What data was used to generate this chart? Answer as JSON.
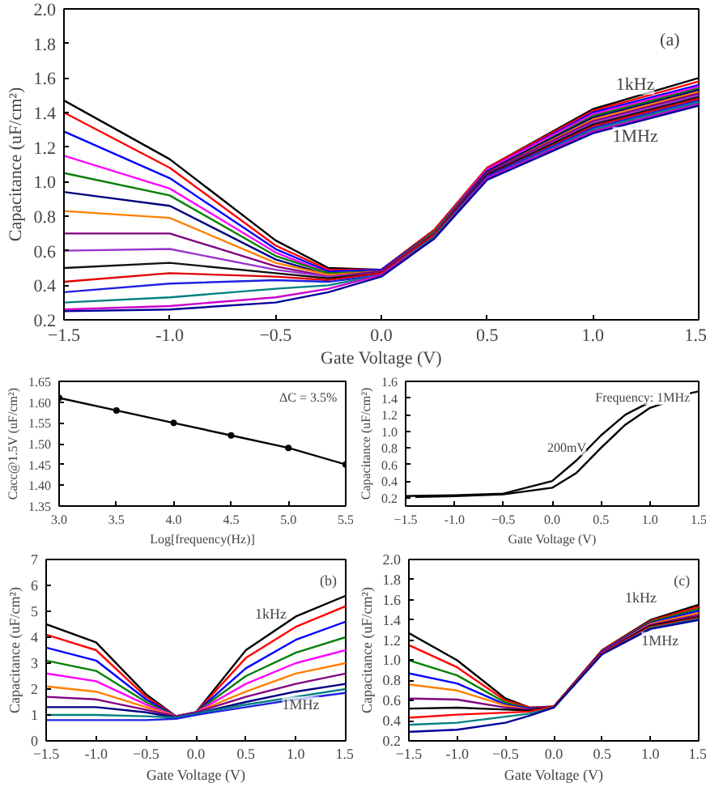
{
  "chart_data": [
    {
      "type": "line",
      "xlabel": "Gate Voltage (V)",
      "ylabel": "Capacitance (uF/cm²)",
      "grid": false,
      "xlim": [
        -1.5,
        1.5
      ],
      "xticks": [
        -1.5,
        {
          "value": -1,
          "label": "-1.0"
        },
        -0.5,
        {
          "value": 0,
          "label": "0.0"
        },
        0.5,
        {
          "value": 1,
          "label": "1.0"
        },
        1.5
      ],
      "ylim": [
        0.2,
        2.0
      ],
      "yticks": [
        0.2,
        0.4,
        0.6,
        0.8,
        {
          "value": 1,
          "label": "1.0"
        },
        1.2,
        1.4,
        1.6,
        1.8,
        {
          "value": 2,
          "label": "2.0"
        }
      ],
      "x": [
        -1.5,
        -1.0,
        -0.5,
        -0.25,
        0,
        0.25,
        0.5,
        1.0,
        1.5
      ],
      "annotations": [
        "(a)",
        {
          "text": "1kHz",
          "x": 1.2,
          "y": 1.56
        },
        {
          "text": "1MHz",
          "x": 1.2,
          "y": 1.26
        }
      ],
      "series": [
        {
          "color": "#000000",
          "values": [
            1.47,
            1.13,
            0.66,
            0.5,
            0.49,
            0.72,
            1.08,
            1.42,
            1.6
          ]
        },
        {
          "color": "#ff0000",
          "values": [
            1.4,
            1.08,
            0.63,
            0.49,
            0.49,
            0.72,
            1.08,
            1.41,
            1.58
          ]
        },
        {
          "color": "#0000ff",
          "values": [
            1.29,
            1.02,
            0.61,
            0.48,
            0.49,
            0.71,
            1.07,
            1.4,
            1.56
          ]
        },
        {
          "color": "#ff00ff",
          "values": [
            1.15,
            0.96,
            0.59,
            0.47,
            0.48,
            0.71,
            1.07,
            1.39,
            1.55
          ]
        },
        {
          "color": "#008000",
          "values": [
            1.05,
            0.92,
            0.57,
            0.47,
            0.48,
            0.71,
            1.06,
            1.38,
            1.54
          ]
        },
        {
          "color": "#000080",
          "values": [
            0.94,
            0.86,
            0.55,
            0.46,
            0.48,
            0.7,
            1.06,
            1.37,
            1.53
          ]
        },
        {
          "color": "#ff8000",
          "values": [
            0.83,
            0.79,
            0.53,
            0.46,
            0.48,
            0.7,
            1.05,
            1.36,
            1.52
          ]
        },
        {
          "color": "#800080",
          "values": [
            0.7,
            0.7,
            0.51,
            0.45,
            0.48,
            0.7,
            1.05,
            1.35,
            1.51
          ]
        },
        {
          "color": "#9933cc",
          "values": [
            0.6,
            0.61,
            0.49,
            0.45,
            0.47,
            0.69,
            1.04,
            1.34,
            1.5
          ]
        },
        {
          "color": "#111111",
          "values": [
            0.5,
            0.53,
            0.47,
            0.44,
            0.47,
            0.69,
            1.04,
            1.33,
            1.49
          ]
        },
        {
          "color": "#e00000",
          "values": [
            0.42,
            0.47,
            0.45,
            0.43,
            0.47,
            0.69,
            1.03,
            1.32,
            1.48
          ]
        },
        {
          "color": "#2020e0",
          "values": [
            0.36,
            0.41,
            0.43,
            0.42,
            0.46,
            0.68,
            1.03,
            1.31,
            1.47
          ]
        },
        {
          "color": "#008080",
          "values": [
            0.3,
            0.33,
            0.38,
            0.4,
            0.46,
            0.68,
            1.02,
            1.3,
            1.46
          ]
        },
        {
          "color": "#cc00cc",
          "values": [
            0.26,
            0.28,
            0.33,
            0.38,
            0.46,
            0.67,
            1.02,
            1.29,
            1.45
          ]
        },
        {
          "color": "#000099",
          "values": [
            0.25,
            0.26,
            0.3,
            0.36,
            0.45,
            0.67,
            1.01,
            1.28,
            1.44
          ]
        }
      ]
    },
    {
      "type": "line",
      "xlabel": "Log[frequency(Hz)]",
      "ylabel": "Cacc@1.5V (uF/cm²)",
      "grid": false,
      "marker": "circle",
      "xlim": [
        3.0,
        5.5
      ],
      "xticks": [
        {
          "value": 3,
          "label": "3.0"
        },
        3.5,
        {
          "value": 4,
          "label": "4.0"
        },
        4.5,
        {
          "value": 5,
          "label": "5.0"
        },
        5.5
      ],
      "ylim": [
        1.35,
        1.65
      ],
      "yticks": [
        1.35,
        {
          "value": 1.4,
          "label": "1.40"
        },
        1.45,
        {
          "value": 1.5,
          "label": "1.50"
        },
        1.55,
        {
          "value": 1.6,
          "label": "1.60"
        },
        1.65
      ],
      "x": [
        3.0,
        3.5,
        4.0,
        4.5,
        5.0,
        5.5
      ],
      "annotations": [
        "ΔC = 3.5%"
      ],
      "series": [
        {
          "color": "#000000",
          "values": [
            1.61,
            1.58,
            1.55,
            1.52,
            1.49,
            1.45
          ]
        }
      ]
    },
    {
      "type": "line",
      "xlabel": "Gate Voltage (V)",
      "ylabel": "Capacitance (uF/cm²)",
      "grid": false,
      "xlim": [
        -1.5,
        1.5
      ],
      "xticks": [
        -1.5,
        {
          "value": -1,
          "label": "-1.0"
        },
        -0.5,
        {
          "value": 0,
          "label": "0.0"
        },
        0.5,
        {
          "value": 1,
          "label": "1.0"
        },
        1.5
      ],
      "ylim": [
        0.1,
        1.6
      ],
      "yticks": [
        0.2,
        0.4,
        0.6,
        0.8,
        {
          "value": 1,
          "label": "1.0"
        },
        1.2,
        1.4,
        1.6
      ],
      "annotations": [
        {
          "text": "200mV",
          "x": 0.15,
          "y": 0.8
        },
        "Frequency: 1MHz"
      ],
      "series": [
        {
          "color": "#000000",
          "x": [
            -1.5,
            -1.0,
            -0.5,
            0,
            0.25,
            0.5,
            0.75,
            1.0,
            1.5
          ],
          "values": [
            0.22,
            0.23,
            0.25,
            0.4,
            0.65,
            0.95,
            1.2,
            1.35,
            1.48
          ]
        },
        {
          "color": "#000000",
          "x": [
            -1.4,
            -1.0,
            -0.5,
            0,
            0.25,
            0.5,
            0.75,
            1.0,
            1.4
          ],
          "values": [
            0.21,
            0.22,
            0.24,
            0.32,
            0.5,
            0.8,
            1.08,
            1.28,
            1.44
          ]
        }
      ]
    },
    {
      "type": "line",
      "xlabel": "Gate Voltage (V)",
      "ylabel": "Capacitance (uF/cm²)",
      "grid": false,
      "xlim": [
        -1.5,
        1.5
      ],
      "xticks": [
        -1.5,
        {
          "value": -1,
          "label": "-1.0"
        },
        -0.5,
        {
          "value": 0,
          "label": "0.0"
        },
        0.5,
        {
          "value": 1,
          "label": "1.0"
        },
        1.5
      ],
      "ylim": [
        0,
        7
      ],
      "yticks": [
        0,
        1,
        2,
        3,
        4,
        5,
        6,
        7
      ],
      "x": [
        -1.5,
        -1.0,
        -0.5,
        -0.2,
        0,
        0.5,
        1.0,
        1.5
      ],
      "annotations": [
        "(b)",
        {
          "text": "1kHz",
          "x": 0.75,
          "y": 4.9
        },
        {
          "text": "1MHz",
          "x": 1.05,
          "y": 1.4
        }
      ],
      "series": [
        {
          "color": "#000000",
          "values": [
            4.5,
            3.8,
            1.8,
            0.95,
            1.1,
            3.5,
            4.8,
            5.6
          ]
        },
        {
          "color": "#ff0000",
          "values": [
            4.1,
            3.5,
            1.7,
            0.95,
            1.1,
            3.2,
            4.4,
            5.2
          ]
        },
        {
          "color": "#0000ff",
          "values": [
            3.6,
            3.1,
            1.6,
            0.95,
            1.1,
            2.8,
            3.9,
            4.6
          ]
        },
        {
          "color": "#008000",
          "values": [
            3.1,
            2.7,
            1.5,
            0.95,
            1.1,
            2.5,
            3.4,
            4.0
          ]
        },
        {
          "color": "#ff00ff",
          "values": [
            2.6,
            2.3,
            1.4,
            0.95,
            1.1,
            2.2,
            3.0,
            3.5
          ]
        },
        {
          "color": "#ff8000",
          "values": [
            2.1,
            1.9,
            1.3,
            0.95,
            1.1,
            1.9,
            2.6,
            3.0
          ]
        },
        {
          "color": "#800080",
          "values": [
            1.7,
            1.6,
            1.2,
            0.95,
            1.1,
            1.7,
            2.2,
            2.6
          ]
        },
        {
          "color": "#000080",
          "values": [
            1.3,
            1.3,
            1.1,
            0.9,
            1.05,
            1.5,
            1.9,
            2.2
          ]
        },
        {
          "color": "#008080",
          "values": [
            1.0,
            1.0,
            0.95,
            0.9,
            1.05,
            1.4,
            1.7,
            2.0
          ]
        },
        {
          "color": "#2020e0",
          "values": [
            0.8,
            0.8,
            0.8,
            0.85,
            1.0,
            1.3,
            1.6,
            1.85
          ]
        }
      ]
    },
    {
      "type": "line",
      "xlabel": "Gate Voltage (V)",
      "ylabel": "Capacitance (uF/cm²)",
      "grid": false,
      "xlim": [
        -1.5,
        1.5
      ],
      "xticks": [
        -1.5,
        {
          "value": -1,
          "label": "-1.0"
        },
        -0.5,
        {
          "value": 0,
          "label": "0.0"
        },
        0.5,
        {
          "value": 1,
          "label": "1.0"
        },
        1.5
      ],
      "ylim": [
        0.2,
        2.0
      ],
      "yticks": [
        0.2,
        0.4,
        0.6,
        0.8,
        {
          "value": 1,
          "label": "1.0"
        },
        1.2,
        1.4,
        1.6,
        1.8,
        {
          "value": 2,
          "label": "2.0"
        }
      ],
      "x": [
        -1.5,
        -1.0,
        -0.5,
        -0.25,
        0,
        0.5,
        1.0,
        1.5
      ],
      "annotations": [
        "(c)",
        {
          "text": "1kHz",
          "x": 0.9,
          "y": 1.62
        },
        {
          "text": "1MHz",
          "x": 1.1,
          "y": 1.2
        }
      ],
      "series": [
        {
          "color": "#000000",
          "values": [
            1.27,
            1.0,
            0.62,
            0.53,
            0.54,
            1.1,
            1.4,
            1.55
          ]
        },
        {
          "color": "#ff0000",
          "values": [
            1.15,
            0.93,
            0.6,
            0.53,
            0.54,
            1.1,
            1.39,
            1.53
          ]
        },
        {
          "color": "#008000",
          "values": [
            1.0,
            0.85,
            0.58,
            0.52,
            0.54,
            1.09,
            1.38,
            1.51
          ]
        },
        {
          "color": "#0000ff",
          "values": [
            0.87,
            0.77,
            0.56,
            0.52,
            0.54,
            1.09,
            1.37,
            1.49
          ]
        },
        {
          "color": "#ff8000",
          "values": [
            0.76,
            0.7,
            0.55,
            0.51,
            0.54,
            1.08,
            1.36,
            1.47
          ]
        },
        {
          "color": "#800080",
          "values": [
            0.62,
            0.61,
            0.53,
            0.51,
            0.54,
            1.08,
            1.35,
            1.45
          ]
        },
        {
          "color": "#000000",
          "values": [
            0.52,
            0.53,
            0.51,
            0.5,
            0.54,
            1.07,
            1.34,
            1.43
          ]
        },
        {
          "color": "#ff0000",
          "values": [
            0.43,
            0.46,
            0.48,
            0.49,
            0.54,
            1.07,
            1.33,
            1.42
          ]
        },
        {
          "color": "#008080",
          "values": [
            0.36,
            0.38,
            0.44,
            0.47,
            0.53,
            1.06,
            1.32,
            1.41
          ]
        },
        {
          "color": "#000099",
          "values": [
            0.29,
            0.31,
            0.38,
            0.45,
            0.53,
            1.06,
            1.31,
            1.4
          ]
        }
      ]
    }
  ]
}
